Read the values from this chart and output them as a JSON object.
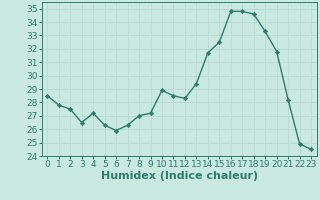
{
  "x": [
    0,
    1,
    2,
    3,
    4,
    5,
    6,
    7,
    8,
    9,
    10,
    11,
    12,
    13,
    14,
    15,
    16,
    17,
    18,
    19,
    20,
    21,
    22,
    23
  ],
  "y": [
    28.5,
    27.8,
    27.5,
    26.5,
    27.2,
    26.3,
    25.9,
    26.3,
    27.0,
    27.2,
    28.9,
    28.5,
    28.3,
    29.4,
    31.7,
    32.5,
    34.8,
    34.8,
    34.6,
    33.3,
    31.8,
    28.2,
    24.9,
    24.5
  ],
  "line_color": "#2e7d6e",
  "marker": "D",
  "marker_size": 2.2,
  "bg_color": "#c8e8e0",
  "grid_color": "#b8d8d0",
  "xlabel": "Humidex (Indice chaleur)",
  "xlim": [
    -0.5,
    23.5
  ],
  "ylim": [
    24,
    35.5
  ],
  "yticks": [
    24,
    25,
    26,
    27,
    28,
    29,
    30,
    31,
    32,
    33,
    34,
    35
  ],
  "xticks": [
    0,
    1,
    2,
    3,
    4,
    5,
    6,
    7,
    8,
    9,
    10,
    11,
    12,
    13,
    14,
    15,
    16,
    17,
    18,
    19,
    20,
    21,
    22,
    23
  ],
  "tick_color": "#2e7d6e",
  "label_color": "#2e7d6e",
  "font_size": 6.5,
  "xlabel_fontsize": 8.0
}
